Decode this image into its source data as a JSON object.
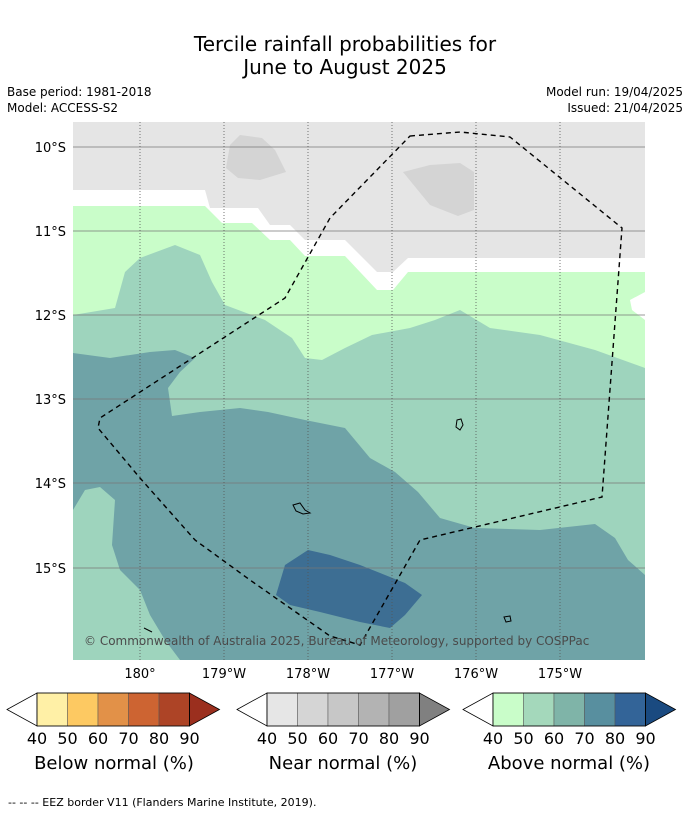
{
  "title": {
    "line1": "Tercile rainfall probabilities for",
    "line2": "June to August 2025"
  },
  "meta": {
    "base_period": "Base period: 1981-2018",
    "model": "Model: ACCESS-S2",
    "model_run": "Model run: 19/04/2025",
    "issued": "Issued: 21/04/2025"
  },
  "map": {
    "lat_labels": [
      "10°S",
      "11°S",
      "12°S",
      "13°S",
      "14°S",
      "15°S"
    ],
    "lon_labels": [
      "180°",
      "179°W",
      "178°W",
      "177°W",
      "176°W",
      "175°W"
    ],
    "copyright": "© Commonwealth of Australia 2025, Bureau of Meteorology, supported by COSPPac",
    "colors": {
      "near_normal_grey": "#e5e5e5",
      "near_normal_dark": "#d4d4d4",
      "above_40": "#c9fdc9",
      "above_50": "#9ed4bd",
      "above_60": "#6fa3a7",
      "above_70": "#3d6e93"
    }
  },
  "colorbars": [
    {
      "name": "Below normal (%)",
      "ticks": [
        "40",
        "50",
        "60",
        "70",
        "80",
        "90"
      ],
      "colors": [
        "#fff0a6",
        "#fdc962",
        "#e29148",
        "#cd6432",
        "#ad4426",
        "#9b2f1e"
      ]
    },
    {
      "name": "Near normal (%)",
      "ticks": [
        "40",
        "50",
        "60",
        "70",
        "80",
        "90"
      ],
      "colors": [
        "#e6e6e6",
        "#d5d5d5",
        "#c7c7c7",
        "#b3b3b3",
        "#a0a0a0",
        "#808080"
      ]
    },
    {
      "name": "Above normal (%)",
      "ticks": [
        "40",
        "50",
        "60",
        "70",
        "80",
        "90"
      ],
      "colors": [
        "#c9fdc9",
        "#a4d8bb",
        "#7fb4a8",
        "#588f9f",
        "#336498",
        "#1a4a80"
      ]
    }
  ],
  "footer": "--  --  -- EEZ border V11 (Flanders Marine Institute, 2019)."
}
